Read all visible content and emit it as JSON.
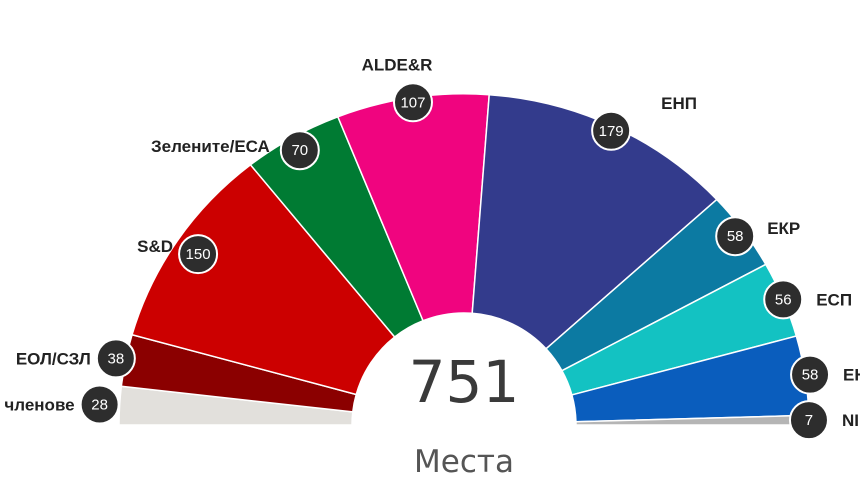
{
  "chart_data": {
    "type": "parliament",
    "total": "751",
    "unit_label": "Места",
    "series": [
      {
        "name": "Нечленове",
        "display_label": "членове",
        "value": 28,
        "color": "#e2e0dc"
      },
      {
        "name": "ЕОЛ/СЗЛ",
        "display_label": "ЕОЛ/СЗЛ",
        "value": 38,
        "color": "#8b0000"
      },
      {
        "name": "S&D",
        "display_label": "S&D",
        "value": 150,
        "color": "#cc0000"
      },
      {
        "name": "Зелените/ЕСА",
        "display_label": "Зелените/ЕСА",
        "value": 70,
        "color": "#007b33"
      },
      {
        "name": "ALDE&R",
        "display_label": "ALDE&R",
        "value": 107,
        "color": "#f0047f"
      },
      {
        "name": "ЕНП",
        "display_label": "ЕНП",
        "value": 179,
        "color": "#333b8c"
      },
      {
        "name": "ЕКР",
        "display_label": "ЕКР",
        "value": 58,
        "color": "#0c7aa2"
      },
      {
        "name": "ЕСП",
        "display_label": "ЕСП",
        "value": 56,
        "color": "#13c2c2"
      },
      {
        "name": "ЕН",
        "display_label": "ЕН",
        "value": 58,
        "color": "#0a5dbd"
      },
      {
        "name": "NI",
        "display_label": "NI",
        "value": 7,
        "color": "#b5b5b5"
      }
    ]
  }
}
